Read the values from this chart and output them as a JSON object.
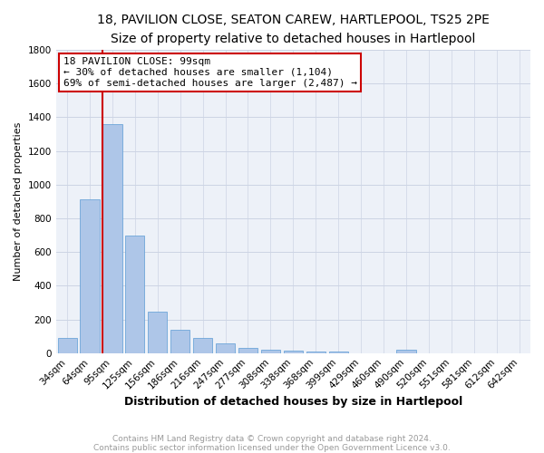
{
  "title": "18, PAVILION CLOSE, SEATON CAREW, HARTLEPOOL, TS25 2PE",
  "subtitle": "Size of property relative to detached houses in Hartlepool",
  "xlabel": "Distribution of detached houses by size in Hartlepool",
  "ylabel": "Number of detached properties",
  "categories": [
    "34sqm",
    "64sqm",
    "95sqm",
    "125sqm",
    "156sqm",
    "186sqm",
    "216sqm",
    "247sqm",
    "277sqm",
    "308sqm",
    "338sqm",
    "368sqm",
    "399sqm",
    "429sqm",
    "460sqm",
    "490sqm",
    "520sqm",
    "551sqm",
    "581sqm",
    "612sqm",
    "642sqm"
  ],
  "values": [
    90,
    910,
    1360,
    700,
    245,
    140,
    88,
    55,
    30,
    22,
    12,
    10,
    8,
    0,
    0,
    20,
    0,
    0,
    0,
    0,
    0
  ],
  "bar_color": "#aec6e8",
  "bar_edge_color": "#5b9bd5",
  "marker_index": 2,
  "marker_label": "18 PAVILION CLOSE: 99sqm",
  "annotation_line1": "← 30% of detached houses are smaller (1,104)",
  "annotation_line2": "69% of semi-detached houses are larger (2,487) →",
  "marker_color": "#cc0000",
  "ylim": [
    0,
    1800
  ],
  "yticks": [
    0,
    200,
    400,
    600,
    800,
    1000,
    1200,
    1400,
    1600,
    1800
  ],
  "footer1": "Contains HM Land Registry data © Crown copyright and database right 2024.",
  "footer2": "Contains public sector information licensed under the Open Government Licence v3.0.",
  "bg_color": "#ffffff",
  "grid_color": "#ccd4e4",
  "plot_bg_color": "#edf1f8",
  "title_fontsize": 10,
  "subtitle_fontsize": 9,
  "xlabel_fontsize": 9,
  "ylabel_fontsize": 8,
  "tick_fontsize": 7.5,
  "footer_fontsize": 6.5,
  "annotation_fontsize": 8,
  "annotation_box_edge": "#cc0000"
}
